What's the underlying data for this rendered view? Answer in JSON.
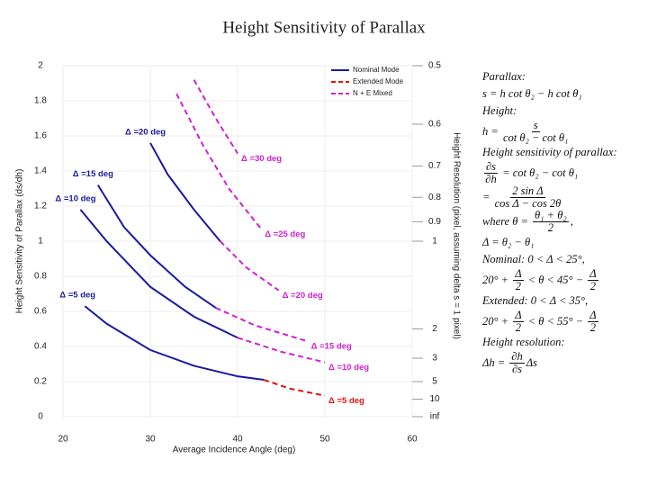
{
  "chart_data": {
    "type": "line",
    "title": "Height Sensitivity of Parallax",
    "xlabel": "Average Incidence Angle (deg)",
    "ylabel": "Height Sensitivity of Parallax (ds/dh)",
    "y2label": "Height Resolution (pixel, assuming delta s = 1 pixel)",
    "xlim": [
      20,
      60
    ],
    "xticks": [
      20,
      30,
      40,
      50,
      60
    ],
    "ylim": [
      0,
      2
    ],
    "yticks": [
      0,
      0.2,
      0.4,
      0.6,
      0.8,
      1,
      1.2,
      1.4,
      1.6,
      1.8,
      2
    ],
    "y2scale": "reciprocal",
    "y2ticks": [
      0.5,
      0.6,
      0.7,
      0.8,
      0.9,
      1,
      2,
      3,
      5,
      10,
      {
        "value": null,
        "label": "inf"
      }
    ],
    "grid": true,
    "legend": "upper right",
    "series": [
      {
        "name": "Nominal Mode",
        "color": "#1a1aa0",
        "dash": false,
        "curves": [
          {
            "label": "Δ =5 deg",
            "x": [
              22.5,
              25,
              30,
              35,
              40,
              43
            ],
            "values": [
              0.63,
              0.53,
              0.38,
              0.29,
              0.23,
              0.21
            ]
          },
          {
            "label": "Δ =10 deg",
            "x": [
              22,
              25,
              30,
              35,
              40
            ],
            "values": [
              1.18,
              1.0,
              0.74,
              0.57,
              0.45
            ]
          },
          {
            "label": "Δ =15 deg",
            "x": [
              24,
              27,
              30,
              34,
              37.5
            ],
            "values": [
              1.32,
              1.08,
              0.92,
              0.74,
              0.62
            ]
          },
          {
            "label": "Δ =20 deg",
            "x": [
              30,
              32,
              35,
              38
            ],
            "values": [
              1.56,
              1.38,
              1.18,
              1.0
            ]
          }
        ]
      },
      {
        "name": "Extended Mode",
        "color": "#e01010",
        "dash": true,
        "curves": [
          {
            "label": "Δ =5 deg",
            "x": [
              43,
              46,
              50
            ],
            "values": [
              0.21,
              0.16,
              0.12
            ]
          }
        ]
      },
      {
        "name": "N + E Mixed",
        "color": "#d020d0",
        "dash": true,
        "curves": [
          {
            "label": "Δ =10 deg",
            "x": [
              40,
              45,
              50
            ],
            "values": [
              0.45,
              0.37,
              0.31
            ]
          },
          {
            "label": "Δ =15 deg",
            "x": [
              37.5,
              42,
              48
            ],
            "values": [
              0.62,
              0.52,
              0.43
            ]
          },
          {
            "label": "Δ =20 deg",
            "x": [
              38,
              41,
              44.7
            ],
            "values": [
              1.0,
              0.85,
              0.72
            ]
          },
          {
            "label": "Δ =25 deg",
            "x": [
              33,
              36,
              39,
              42.7
            ],
            "values": [
              1.84,
              1.55,
              1.3,
              1.07
            ]
          },
          {
            "label": "Δ =30 deg",
            "x": [
              35,
              37.5,
              40
            ],
            "values": [
              1.92,
              1.7,
              1.5
            ]
          }
        ]
      }
    ]
  },
  "equations": [
    [
      "Parallax:"
    ],
    [
      "s = h cot θ₂ − h cot θ₁"
    ],
    [
      "Height:"
    ],
    [
      "h = ",
      {
        "num": "s",
        "den": "cot θ₂ − cot θ₁"
      }
    ],
    [
      "Height sensitivity of parallax:"
    ],
    [
      {
        "num": "∂s",
        "den": "∂h"
      },
      " = cot θ₂ − cot θ₁"
    ],
    [
      "= ",
      {
        "num": "2 sin Δ",
        "den": "cos Δ − cos 2θ"
      }
    ],
    [
      "where θ = ",
      {
        "num": "θ₁ + θ₂",
        "den": "2"
      },
      ","
    ],
    [
      "Δ = θ₂ − θ₁"
    ],
    [
      "Nominal: 0 < Δ < 25°,"
    ],
    [
      "20° + ",
      {
        "num": "Δ",
        "den": "2"
      },
      " < θ < 45° − ",
      {
        "num": "Δ",
        "den": "2"
      }
    ],
    [
      "Extended: 0 < Δ < 35°,"
    ],
    [
      "20° + ",
      {
        "num": "Δ",
        "den": "2"
      },
      " < θ < 55° − ",
      {
        "num": "Δ",
        "den": "2"
      }
    ],
    [
      "Height resolution:"
    ],
    [
      "Δh = ",
      {
        "num": "∂h",
        "den": "∂s"
      },
      "Δs"
    ]
  ]
}
